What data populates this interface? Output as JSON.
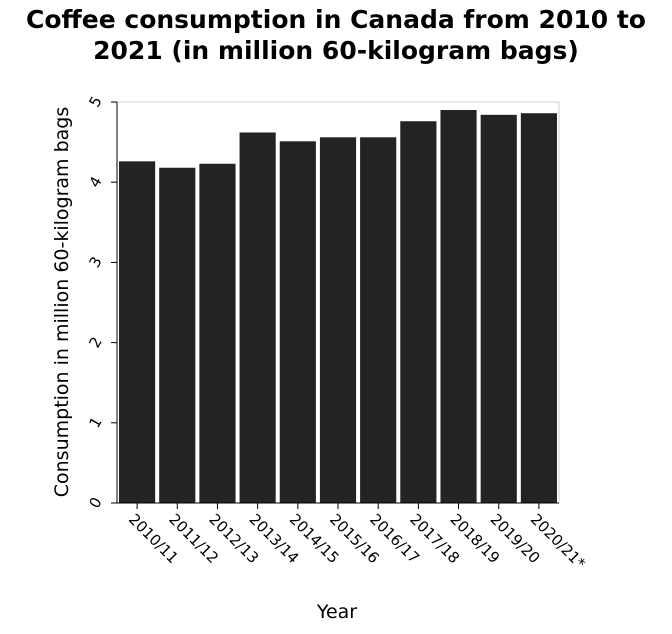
{
  "chart_data": {
    "type": "bar",
    "title": "Coffee consumption in Canada from 2010 to\n2021 (in million 60-kilogram bags)",
    "xlabel": "Year",
    "ylabel": "Consumption in million 60-kilogram bags",
    "categories": [
      "2010/11",
      "2011/12",
      "2012/13",
      "2013/14",
      "2014/15",
      "2015/16",
      "2016/17",
      "2017/18",
      "2018/19",
      "2019/20",
      "2020/21*"
    ],
    "values": [
      4.26,
      4.18,
      4.23,
      4.62,
      4.51,
      4.56,
      4.56,
      4.76,
      4.9,
      4.84,
      4.86
    ],
    "ylim": [
      0,
      5
    ],
    "yticks": [
      "0",
      "1",
      "2",
      "3",
      "4",
      "5"
    ],
    "grid": false,
    "legend": "none",
    "colors": {
      "bar": "#232323",
      "axis": "#000000",
      "text": "#000000"
    }
  }
}
